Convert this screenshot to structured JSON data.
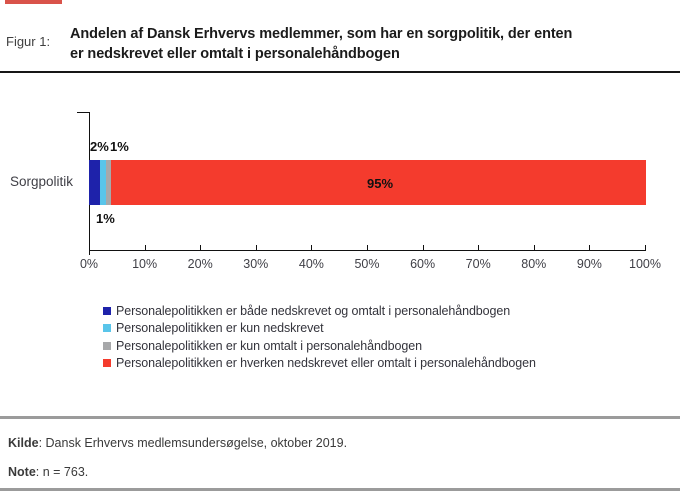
{
  "header": {
    "figure_label": "Figur 1:",
    "title": "Andelen af Dansk Erhvervs medlemmer, som har en sorgpolitik, der enten\ner nedskrevet eller omtalt i personalehåndbogen"
  },
  "chart_data": {
    "type": "bar",
    "orientation": "horizontal",
    "stacked": true,
    "categories": [
      "Sorgpolitik"
    ],
    "series": [
      {
        "name": "Personalepolitikken er både nedskrevet og omtalt i personalehåndbogen",
        "values": [
          2
        ],
        "color": "#1e22aa"
      },
      {
        "name": "Personalepolitikken er kun nedskrevet",
        "values": [
          1
        ],
        "color": "#59c5ea"
      },
      {
        "name": "Personalepolitikken er kun omtalt i personalehåndbogen",
        "values": [
          1
        ],
        "color": "#a7a8aa"
      },
      {
        "name": "Personalepolitikken er hverken nedskrevet eller omtalt i personalehåndbogen",
        "values": [
          95
        ],
        "color": "#f43b2d"
      }
    ],
    "value_labels": {
      "baade": "2%",
      "kun_nedskrevet": "1%",
      "kun_omtalt": "1%",
      "hverken": "95%"
    },
    "xlim": [
      0,
      100
    ],
    "x_ticks": [
      "0%",
      "10%",
      "20%",
      "30%",
      "40%",
      "50%",
      "60%",
      "70%",
      "80%",
      "90%",
      "100%"
    ],
    "grid": false,
    "legend_position": "bottom"
  },
  "footer": {
    "kilde_label": "Kilde",
    "kilde_text": ": Dansk Erhvervs medlemsundersøgelse, oktober 2019.",
    "note_label": "Note",
    "note_text": ": n = 763."
  }
}
